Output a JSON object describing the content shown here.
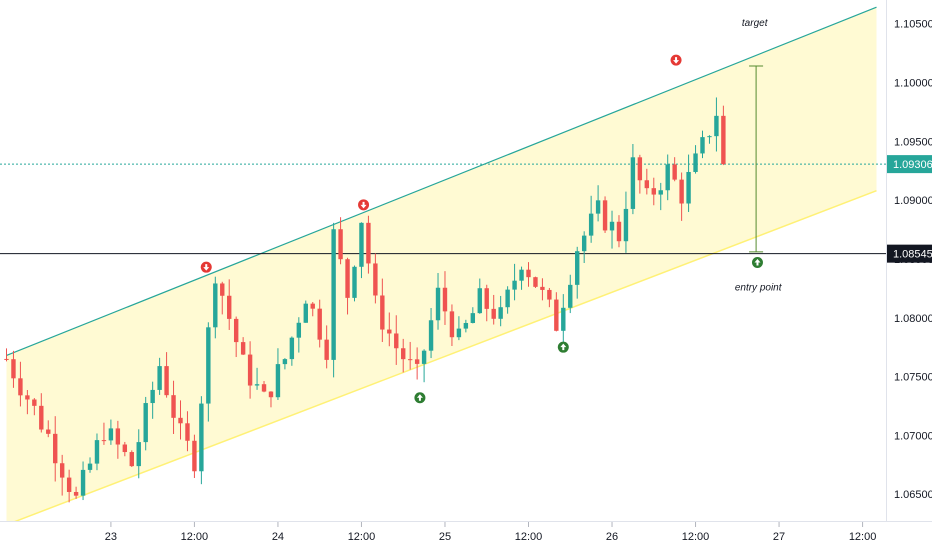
{
  "colors": {
    "up": "#26a69a",
    "down": "#ef5350",
    "channel_fill": "#fff59d",
    "channel_upper": "#26a69a",
    "channel_lower": "#fff176",
    "current_line": "#26a69a",
    "level_line": "#131722",
    "target_arrow": "#558b2f",
    "buy_marker": "#2e7d32",
    "sell_marker": "#e53935",
    "axis_text": "#131722"
  },
  "chart_data": {
    "type": "candlestick",
    "title": "",
    "xlabel": "",
    "ylabel": "",
    "ylim": [
      1.0623,
      1.1065
    ],
    "x_range": [
      0,
      123
    ],
    "x_ticks": [
      {
        "x": 15,
        "label": "23"
      },
      {
        "x": 27,
        "label": "12:00"
      },
      {
        "x": 39,
        "label": "24"
      },
      {
        "x": 51,
        "label": "12:00"
      },
      {
        "x": 63,
        "label": "25"
      },
      {
        "x": 75,
        "label": "12:00"
      },
      {
        "x": 87,
        "label": "26"
      },
      {
        "x": 99,
        "label": "12:00"
      },
      {
        "x": 111,
        "label": "27"
      },
      {
        "x": 123,
        "label": "12:00"
      }
    ],
    "y_ticks": [
      1.065,
      1.07,
      1.075,
      1.08,
      1.085,
      1.09,
      1.095,
      1.1,
      1.105
    ],
    "y_tick_labels": [
      "1.06500",
      "1.07000",
      "1.07500",
      "1.08000",
      "1.08500",
      "1.09000",
      "1.09500",
      "1.10000",
      "1.10500"
    ],
    "current_price": {
      "value": 1.09306,
      "label": "1.09306"
    },
    "level": {
      "value": 1.08545,
      "label": "1.08545"
    },
    "channel": {
      "upper": [
        {
          "x": 0,
          "y": 1.0768
        },
        {
          "x": 125,
          "y": 1.1064
        }
      ],
      "lower": [
        {
          "x": 0,
          "y": 1.0624
        },
        {
          "x": 125,
          "y": 1.0908
        }
      ]
    },
    "target_arrow": {
      "x": 107.7,
      "y_from": 1.0856,
      "y_to": 1.1014
    },
    "annotations": [
      {
        "text": "target",
        "x": 107.5,
        "y": 1.1048
      },
      {
        "text": "entry point",
        "x": 108,
        "y": 1.0823
      }
    ],
    "markers": [
      {
        "type": "sell",
        "x": 28.7,
        "y": 1.0843
      },
      {
        "type": "sell",
        "x": 51.3,
        "y": 1.0896
      },
      {
        "type": "sell",
        "x": 96.2,
        "y": 1.1019
      },
      {
        "type": "buy",
        "x": 59.4,
        "y": 1.0732
      },
      {
        "type": "buy",
        "x": 80.0,
        "y": 1.0775
      },
      {
        "type": "buy",
        "x": 107.9,
        "y": 1.0847
      }
    ],
    "pivots": [
      {
        "x": 0,
        "y": 1.0765
      },
      {
        "x": 6,
        "y": 1.07
      },
      {
        "x": 10,
        "y": 1.0645
      },
      {
        "x": 14,
        "y": 1.0705
      },
      {
        "x": 18,
        "y": 1.0675
      },
      {
        "x": 22,
        "y": 1.076
      },
      {
        "x": 25,
        "y": 1.07
      },
      {
        "x": 27,
        "y": 1.068
      },
      {
        "x": 30,
        "y": 1.084
      },
      {
        "x": 34,
        "y": 1.076
      },
      {
        "x": 37,
        "y": 1.073
      },
      {
        "x": 40,
        "y": 1.0765
      },
      {
        "x": 43,
        "y": 1.082
      },
      {
        "x": 46,
        "y": 1.0775
      },
      {
        "x": 47,
        "y": 1.087
      },
      {
        "x": 49,
        "y": 1.082
      },
      {
        "x": 51,
        "y": 1.0885
      },
      {
        "x": 53,
        "y": 1.081
      },
      {
        "x": 56,
        "y": 1.0775
      },
      {
        "x": 59,
        "y": 1.075
      },
      {
        "x": 62,
        "y": 1.082
      },
      {
        "x": 65,
        "y": 1.078
      },
      {
        "x": 68,
        "y": 1.0815
      },
      {
        "x": 71,
        "y": 1.08
      },
      {
        "x": 74,
        "y": 1.085
      },
      {
        "x": 76,
        "y": 1.083
      },
      {
        "x": 79,
        "y": 1.0795
      },
      {
        "x": 82,
        "y": 1.086
      },
      {
        "x": 85,
        "y": 1.089
      },
      {
        "x": 88,
        "y": 1.087
      },
      {
        "x": 90,
        "y": 1.093
      },
      {
        "x": 92,
        "y": 1.09
      },
      {
        "x": 95,
        "y": 1.0925
      },
      {
        "x": 97,
        "y": 1.0905
      },
      {
        "x": 100,
        "y": 1.0945
      },
      {
        "x": 102,
        "y": 1.0975
      },
      {
        "x": 103,
        "y": 1.093
      }
    ]
  }
}
